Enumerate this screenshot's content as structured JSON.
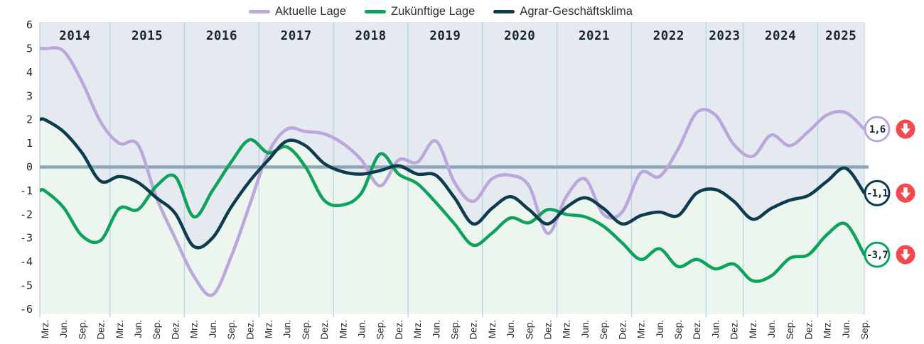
{
  "chart_data": {
    "type": "line",
    "title": "",
    "ylim": [
      -6,
      6
    ],
    "y_ticks": [
      6,
      5,
      4,
      3,
      2,
      1,
      0,
      -1,
      -2,
      -3,
      -4,
      -5,
      -6
    ],
    "legend_position": "top",
    "grid": "year-separators",
    "x_axis": {
      "years": [
        {
          "label": "2014",
          "quarters": [
            "Mrz.",
            "Jun.",
            "Sep.",
            "Dez."
          ]
        },
        {
          "label": "2015",
          "quarters": [
            "Mrz.",
            "Jun.",
            "Sep.",
            "Dez."
          ]
        },
        {
          "label": "2016",
          "quarters": [
            "Mrz.",
            "Jun.",
            "Sep.",
            "Dez."
          ]
        },
        {
          "label": "2017",
          "quarters": [
            "Mrz.",
            "Jun.",
            "Sep.",
            "Dez."
          ]
        },
        {
          "label": "2018",
          "quarters": [
            "Mrz.",
            "Jun.",
            "Sep.",
            "Dez."
          ]
        },
        {
          "label": "2019",
          "quarters": [
            "Mrz.",
            "Jun.",
            "Sep.",
            "Dez."
          ]
        },
        {
          "label": "2020",
          "quarters": [
            "Mrz.",
            "Jun.",
            "Sep.",
            "Dez."
          ]
        },
        {
          "label": "2021",
          "quarters": [
            "Mrz.",
            "Jun.",
            "Sep.",
            "Dez."
          ]
        },
        {
          "label": "2022",
          "quarters": [
            "Mrz.",
            "Jun.",
            "Sep.",
            "Dez."
          ]
        },
        {
          "label": "2023",
          "quarters": [
            "Jun.",
            "Dez."
          ]
        },
        {
          "label": "2024",
          "quarters": [
            "Mrz.",
            "Jun.",
            "Sep.",
            "Dez."
          ]
        },
        {
          "label": "2025",
          "quarters": [
            "Mrz.",
            "Jun.",
            "Sep."
          ]
        }
      ]
    },
    "series": [
      {
        "name": "Aktuelle Lage",
        "color": "#bca7dd",
        "end_value_label": "1,6",
        "trend": "down",
        "values": [
          5.0,
          4.9,
          3.6,
          1.9,
          1.0,
          0.95,
          -1.3,
          -3.0,
          -4.6,
          -5.4,
          -3.8,
          -1.6,
          0.6,
          1.6,
          1.5,
          1.4,
          1.0,
          0.3,
          -0.8,
          0.3,
          0.2,
          1.1,
          -0.65,
          -1.45,
          -0.5,
          -0.35,
          -0.8,
          -2.8,
          -1.25,
          -0.5,
          -2.0,
          -1.9,
          -0.25,
          -0.4,
          0.75,
          2.3,
          2.2,
          0.95,
          0.45,
          1.35,
          0.9,
          1.5,
          2.2,
          2.3,
          1.6
        ]
      },
      {
        "name": "Zukünftige Lage",
        "color": "#0ea35c",
        "end_value_label": "-3,7",
        "trend": "down",
        "values": [
          -1.0,
          -1.7,
          -2.9,
          -3.1,
          -1.75,
          -1.8,
          -0.8,
          -0.4,
          -2.1,
          -1.0,
          0.2,
          1.15,
          0.6,
          0.85,
          0.0,
          -1.4,
          -1.6,
          -1.1,
          0.55,
          -0.3,
          -0.7,
          -1.5,
          -2.4,
          -3.3,
          -2.8,
          -2.15,
          -2.35,
          -1.8,
          -2.0,
          -2.1,
          -2.5,
          -3.2,
          -3.9,
          -3.45,
          -4.2,
          -3.9,
          -4.3,
          -4.1,
          -4.8,
          -4.6,
          -3.85,
          -3.7,
          -2.85,
          -2.4,
          -3.7
        ]
      },
      {
        "name": "Agrar-Geschäftsklima",
        "color": "#0e3c4f",
        "end_value_label": "-1,1",
        "trend": "down",
        "values": [
          2.0,
          1.5,
          0.6,
          -0.6,
          -0.4,
          -0.65,
          -1.3,
          -1.95,
          -3.35,
          -3.0,
          -1.7,
          -0.6,
          0.3,
          1.1,
          0.9,
          0.15,
          -0.2,
          -0.3,
          -0.15,
          0.05,
          -0.3,
          -0.35,
          -1.3,
          -2.4,
          -1.75,
          -1.25,
          -1.8,
          -2.4,
          -1.7,
          -1.3,
          -1.75,
          -2.4,
          -2.05,
          -1.9,
          -2.05,
          -1.1,
          -0.95,
          -1.45,
          -2.2,
          -1.75,
          -1.4,
          -1.2,
          -0.6,
          -0.05,
          -1.1
        ]
      }
    ],
    "zero_line": true,
    "colors": {
      "zero_line": "#8ba6b6",
      "year_separator": "#b9d6e2",
      "background_above_climate_line": "#e4eaf0",
      "background_below_climate_line": "#edf5ef",
      "trend_arrow": "#f4494d",
      "axis_text": "#1d2930",
      "badge_text": "#17262e"
    }
  }
}
